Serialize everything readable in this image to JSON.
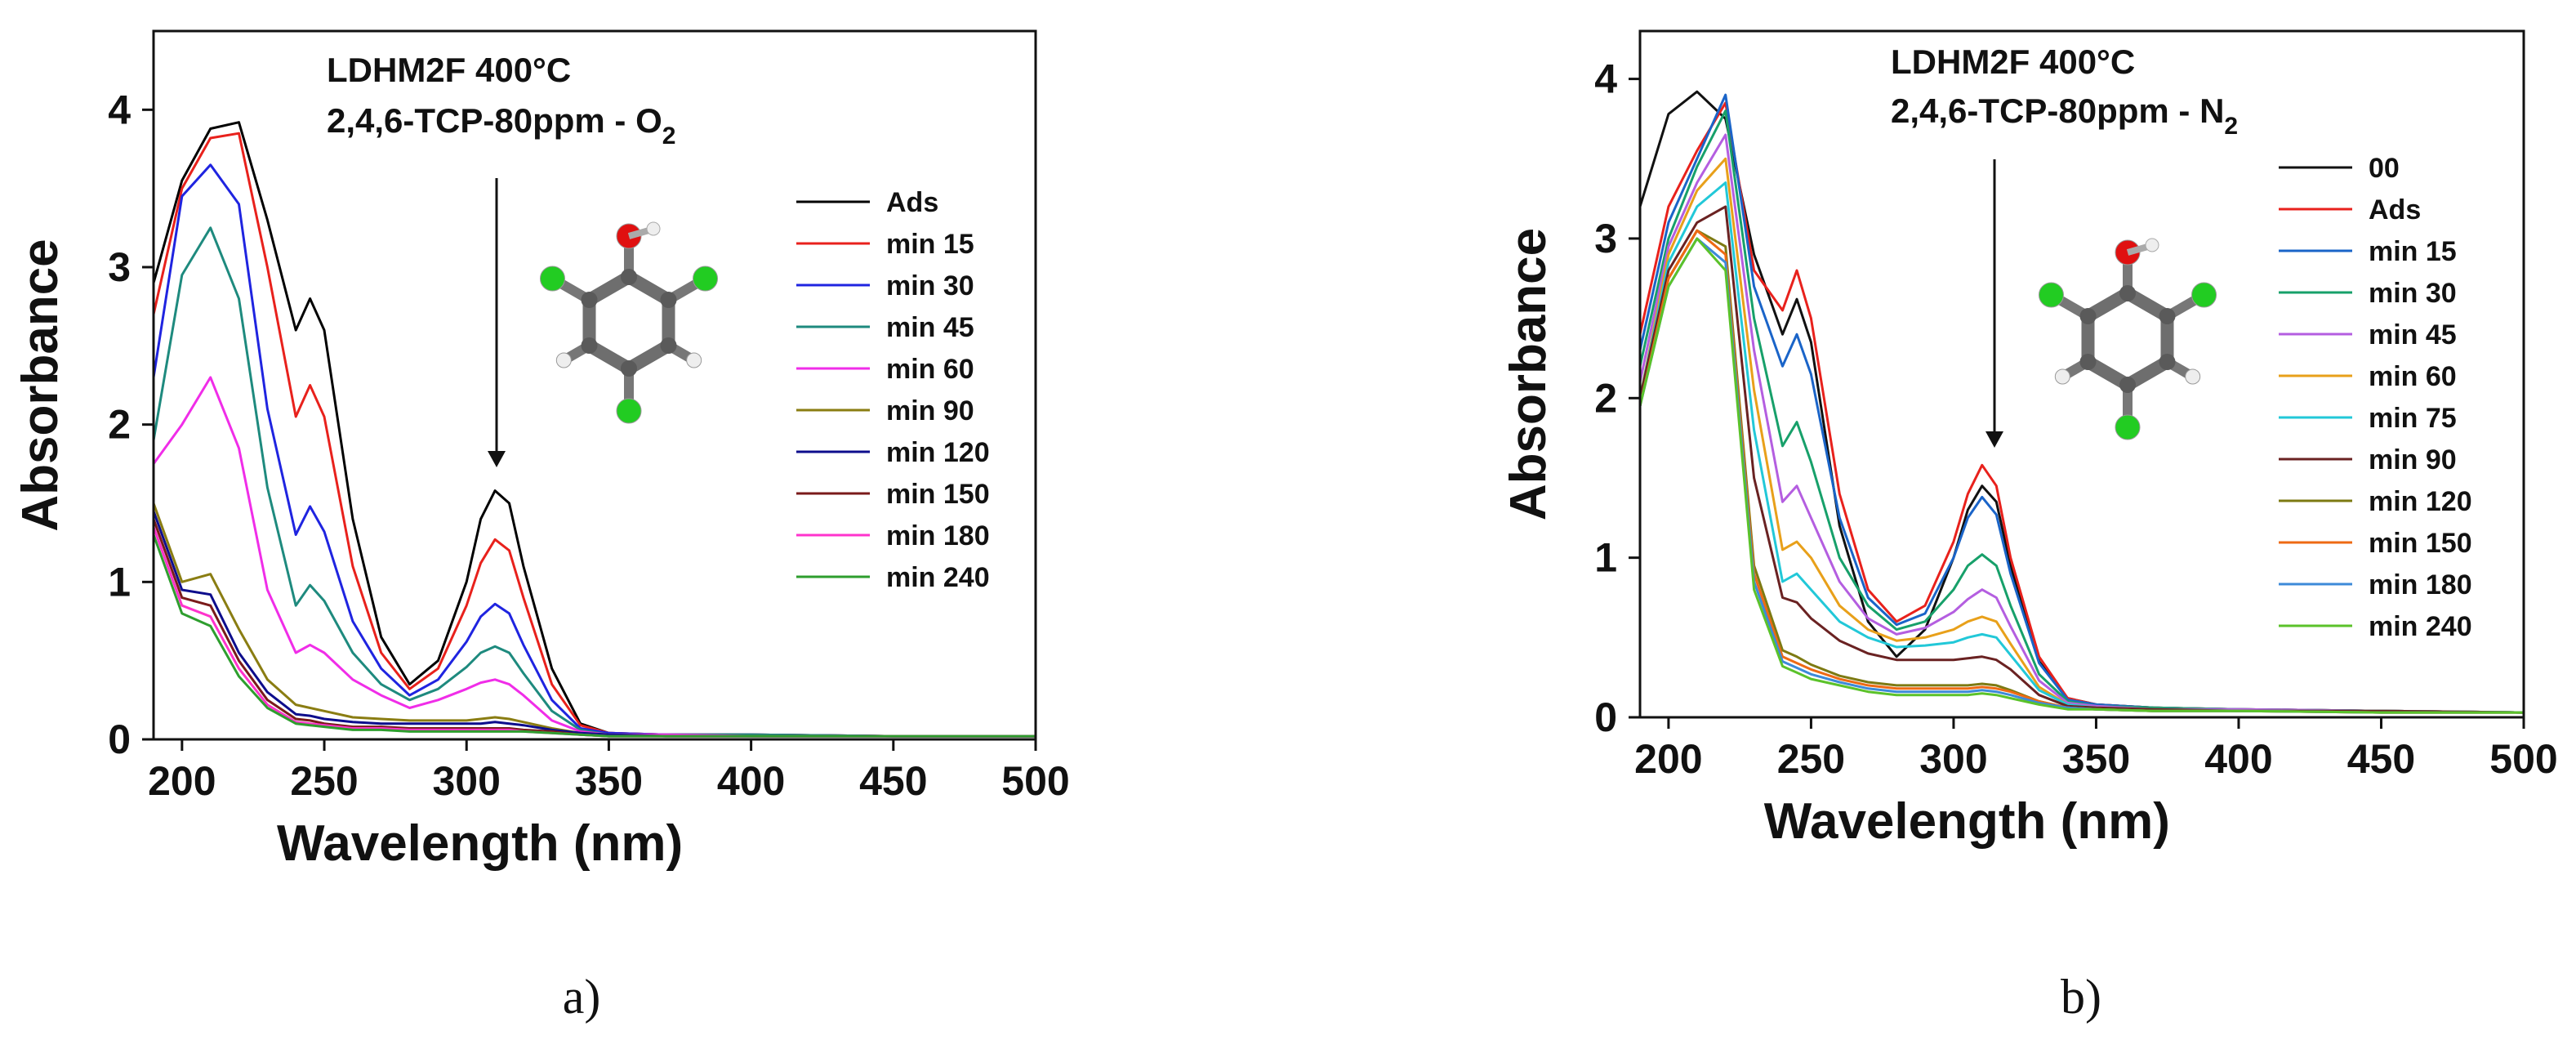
{
  "chart_data": [
    {
      "type": "line",
      "panel_label": "a)",
      "xlabel": "Wavelength (nm)",
      "ylabel": "Absorbance",
      "xlim": [
        190,
        500
      ],
      "ylim": [
        0,
        4.5
      ],
      "xticks": [
        "200",
        "250",
        "300",
        "350",
        "400",
        "450",
        "500"
      ],
      "yticks": [
        "0",
        "1",
        "2",
        "3",
        "4"
      ],
      "annotation_title": "LDHM2F 400°C",
      "annotation_subtitle_main": "2,4,6-TCP-80ppm  - O",
      "annotation_subtitle_sub": "2",
      "legend_position": "right",
      "x": [
        190,
        200,
        210,
        220,
        230,
        240,
        245,
        250,
        260,
        270,
        280,
        290,
        300,
        305,
        310,
        315,
        320,
        330,
        340,
        350,
        370,
        400,
        450,
        500
      ],
      "series": [
        {
          "name": "Ads",
          "color": "#000000",
          "values": [
            2.9,
            3.55,
            3.88,
            3.92,
            3.3,
            2.6,
            2.8,
            2.6,
            1.4,
            0.65,
            0.35,
            0.5,
            1.0,
            1.4,
            1.58,
            1.5,
            1.1,
            0.45,
            0.1,
            0.04,
            0.03,
            0.03,
            0.02,
            0.02
          ]
        },
        {
          "name": "min 15",
          "color": "#e8211c",
          "values": [
            2.7,
            3.5,
            3.82,
            3.85,
            3.0,
            2.05,
            2.25,
            2.05,
            1.1,
            0.55,
            0.32,
            0.45,
            0.85,
            1.12,
            1.27,
            1.2,
            0.9,
            0.35,
            0.09,
            0.04,
            0.03,
            0.03,
            0.02,
            0.02
          ]
        },
        {
          "name": "min 30",
          "color": "#1f24e0",
          "values": [
            2.3,
            3.45,
            3.65,
            3.4,
            2.1,
            1.3,
            1.48,
            1.32,
            0.75,
            0.45,
            0.28,
            0.38,
            0.62,
            0.78,
            0.86,
            0.8,
            0.6,
            0.25,
            0.07,
            0.04,
            0.03,
            0.03,
            0.02,
            0.02
          ]
        },
        {
          "name": "min 45",
          "color": "#1e8a7e",
          "values": [
            1.9,
            2.95,
            3.25,
            2.8,
            1.6,
            0.85,
            0.98,
            0.88,
            0.55,
            0.35,
            0.25,
            0.32,
            0.46,
            0.55,
            0.59,
            0.55,
            0.42,
            0.18,
            0.06,
            0.03,
            0.03,
            0.03,
            0.02,
            0.02
          ]
        },
        {
          "name": "min 60",
          "color": "#f02de8",
          "values": [
            1.75,
            2.0,
            2.3,
            1.85,
            0.95,
            0.55,
            0.6,
            0.55,
            0.38,
            0.28,
            0.2,
            0.25,
            0.32,
            0.36,
            0.38,
            0.35,
            0.28,
            0.12,
            0.05,
            0.03,
            0.03,
            0.02,
            0.02,
            0.02
          ]
        },
        {
          "name": "min 90",
          "color": "#8a7d12",
          "values": [
            1.5,
            1.0,
            1.05,
            0.7,
            0.38,
            0.22,
            0.2,
            0.18,
            0.14,
            0.13,
            0.12,
            0.12,
            0.12,
            0.13,
            0.14,
            0.13,
            0.11,
            0.07,
            0.04,
            0.03,
            0.02,
            0.02,
            0.02,
            0.02
          ]
        },
        {
          "name": "min 120",
          "color": "#0d0d8c",
          "values": [
            1.45,
            0.95,
            0.92,
            0.55,
            0.3,
            0.16,
            0.15,
            0.13,
            0.11,
            0.1,
            0.1,
            0.1,
            0.1,
            0.1,
            0.11,
            0.1,
            0.09,
            0.06,
            0.04,
            0.03,
            0.02,
            0.02,
            0.02,
            0.02
          ]
        },
        {
          "name": "min 150",
          "color": "#7a1a1a",
          "values": [
            1.4,
            0.9,
            0.85,
            0.5,
            0.25,
            0.13,
            0.12,
            0.1,
            0.08,
            0.08,
            0.07,
            0.07,
            0.07,
            0.07,
            0.07,
            0.07,
            0.06,
            0.05,
            0.03,
            0.02,
            0.02,
            0.02,
            0.02,
            0.02
          ]
        },
        {
          "name": "min 180",
          "color": "#ff33cc",
          "values": [
            1.35,
            0.85,
            0.78,
            0.45,
            0.22,
            0.11,
            0.1,
            0.09,
            0.07,
            0.07,
            0.06,
            0.06,
            0.06,
            0.06,
            0.06,
            0.06,
            0.05,
            0.04,
            0.03,
            0.02,
            0.02,
            0.02,
            0.02,
            0.02
          ]
        },
        {
          "name": "min 240",
          "color": "#2e9e2e",
          "values": [
            1.3,
            0.8,
            0.72,
            0.4,
            0.2,
            0.1,
            0.09,
            0.08,
            0.06,
            0.06,
            0.05,
            0.05,
            0.05,
            0.05,
            0.05,
            0.05,
            0.05,
            0.04,
            0.03,
            0.02,
            0.02,
            0.02,
            0.02,
            0.02
          ]
        }
      ]
    },
    {
      "type": "line",
      "panel_label": "b)",
      "xlabel": "Wavelength (nm)",
      "ylabel": "Absorbance",
      "xlim": [
        190,
        500
      ],
      "ylim": [
        0,
        4.3
      ],
      "xticks": [
        "200",
        "250",
        "300",
        "350",
        "400",
        "450",
        "500"
      ],
      "yticks": [
        "0",
        "1",
        "2",
        "3",
        "4"
      ],
      "annotation_title": "LDHM2F 400°C",
      "annotation_subtitle_main": "2,4,6-TCP-80ppm  - N",
      "annotation_subtitle_sub": "2",
      "legend_position": "right",
      "x": [
        190,
        200,
        210,
        220,
        230,
        240,
        245,
        250,
        260,
        270,
        280,
        290,
        300,
        305,
        310,
        315,
        320,
        330,
        340,
        350,
        370,
        400,
        450,
        500
      ],
      "series": [
        {
          "name": "00",
          "color": "#111111",
          "values": [
            3.2,
            3.78,
            3.92,
            3.75,
            2.9,
            2.4,
            2.62,
            2.35,
            1.2,
            0.6,
            0.38,
            0.55,
            1.0,
            1.3,
            1.45,
            1.35,
            0.95,
            0.35,
            0.12,
            0.08,
            0.06,
            0.05,
            0.04,
            0.03
          ]
        },
        {
          "name": "Ads",
          "color": "#e8211c",
          "values": [
            2.4,
            3.2,
            3.55,
            3.85,
            2.8,
            2.55,
            2.8,
            2.5,
            1.4,
            0.8,
            0.6,
            0.7,
            1.1,
            1.4,
            1.58,
            1.45,
            1.0,
            0.38,
            0.12,
            0.08,
            0.06,
            0.05,
            0.04,
            0.03
          ]
        },
        {
          "name": "min 15",
          "color": "#1a64c8",
          "values": [
            2.3,
            3.1,
            3.5,
            3.9,
            2.7,
            2.2,
            2.4,
            2.15,
            1.25,
            0.75,
            0.58,
            0.65,
            1.0,
            1.25,
            1.38,
            1.27,
            0.9,
            0.34,
            0.11,
            0.08,
            0.06,
            0.05,
            0.04,
            0.03
          ]
        },
        {
          "name": "min 30",
          "color": "#17a06a",
          "values": [
            2.2,
            3.0,
            3.45,
            3.8,
            2.5,
            1.7,
            1.85,
            1.6,
            1.0,
            0.7,
            0.55,
            0.6,
            0.8,
            0.95,
            1.02,
            0.95,
            0.7,
            0.27,
            0.1,
            0.07,
            0.06,
            0.05,
            0.04,
            0.03
          ]
        },
        {
          "name": "min 45",
          "color": "#b45ee0",
          "values": [
            2.1,
            2.95,
            3.35,
            3.65,
            2.3,
            1.35,
            1.45,
            1.25,
            0.85,
            0.62,
            0.52,
            0.56,
            0.66,
            0.74,
            0.8,
            0.75,
            0.57,
            0.23,
            0.09,
            0.07,
            0.05,
            0.05,
            0.04,
            0.03
          ]
        },
        {
          "name": "min 60",
          "color": "#e8a01a",
          "values": [
            2.0,
            2.9,
            3.3,
            3.5,
            2.05,
            1.05,
            1.1,
            1.0,
            0.7,
            0.55,
            0.48,
            0.5,
            0.55,
            0.6,
            0.63,
            0.6,
            0.46,
            0.19,
            0.08,
            0.06,
            0.05,
            0.04,
            0.04,
            0.03
          ]
        },
        {
          "name": "min 75",
          "color": "#22c8d8",
          "values": [
            2.0,
            2.85,
            3.2,
            3.35,
            1.8,
            0.85,
            0.9,
            0.8,
            0.6,
            0.5,
            0.44,
            0.45,
            0.47,
            0.5,
            0.52,
            0.5,
            0.39,
            0.17,
            0.08,
            0.06,
            0.05,
            0.04,
            0.04,
            0.03
          ]
        },
        {
          "name": "min 90",
          "color": "#6a2222",
          "values": [
            2.0,
            2.8,
            3.1,
            3.2,
            1.5,
            0.75,
            0.72,
            0.62,
            0.48,
            0.4,
            0.36,
            0.36,
            0.36,
            0.37,
            0.38,
            0.36,
            0.3,
            0.14,
            0.07,
            0.06,
            0.05,
            0.04,
            0.04,
            0.03
          ]
        },
        {
          "name": "min 120",
          "color": "#7d7a12",
          "values": [
            1.95,
            2.75,
            3.05,
            2.95,
            0.95,
            0.42,
            0.38,
            0.33,
            0.26,
            0.22,
            0.2,
            0.2,
            0.2,
            0.2,
            0.21,
            0.2,
            0.17,
            0.1,
            0.06,
            0.05,
            0.04,
            0.04,
            0.03,
            0.03
          ]
        },
        {
          "name": "min 150",
          "color": "#ee6a14",
          "values": [
            1.95,
            2.75,
            3.05,
            2.9,
            0.9,
            0.38,
            0.34,
            0.3,
            0.24,
            0.2,
            0.18,
            0.18,
            0.18,
            0.18,
            0.19,
            0.18,
            0.16,
            0.1,
            0.06,
            0.05,
            0.04,
            0.04,
            0.03,
            0.03
          ]
        },
        {
          "name": "min 180",
          "color": "#3d8ad8",
          "values": [
            1.95,
            2.7,
            3.0,
            2.85,
            0.85,
            0.35,
            0.31,
            0.27,
            0.22,
            0.18,
            0.16,
            0.16,
            0.16,
            0.16,
            0.17,
            0.16,
            0.14,
            0.09,
            0.06,
            0.05,
            0.04,
            0.04,
            0.03,
            0.03
          ]
        },
        {
          "name": "min 240",
          "color": "#5bc22a",
          "values": [
            1.95,
            2.7,
            3.0,
            2.8,
            0.8,
            0.32,
            0.28,
            0.24,
            0.2,
            0.16,
            0.14,
            0.14,
            0.14,
            0.14,
            0.15,
            0.14,
            0.12,
            0.08,
            0.05,
            0.05,
            0.04,
            0.04,
            0.03,
            0.03
          ]
        }
      ]
    }
  ]
}
